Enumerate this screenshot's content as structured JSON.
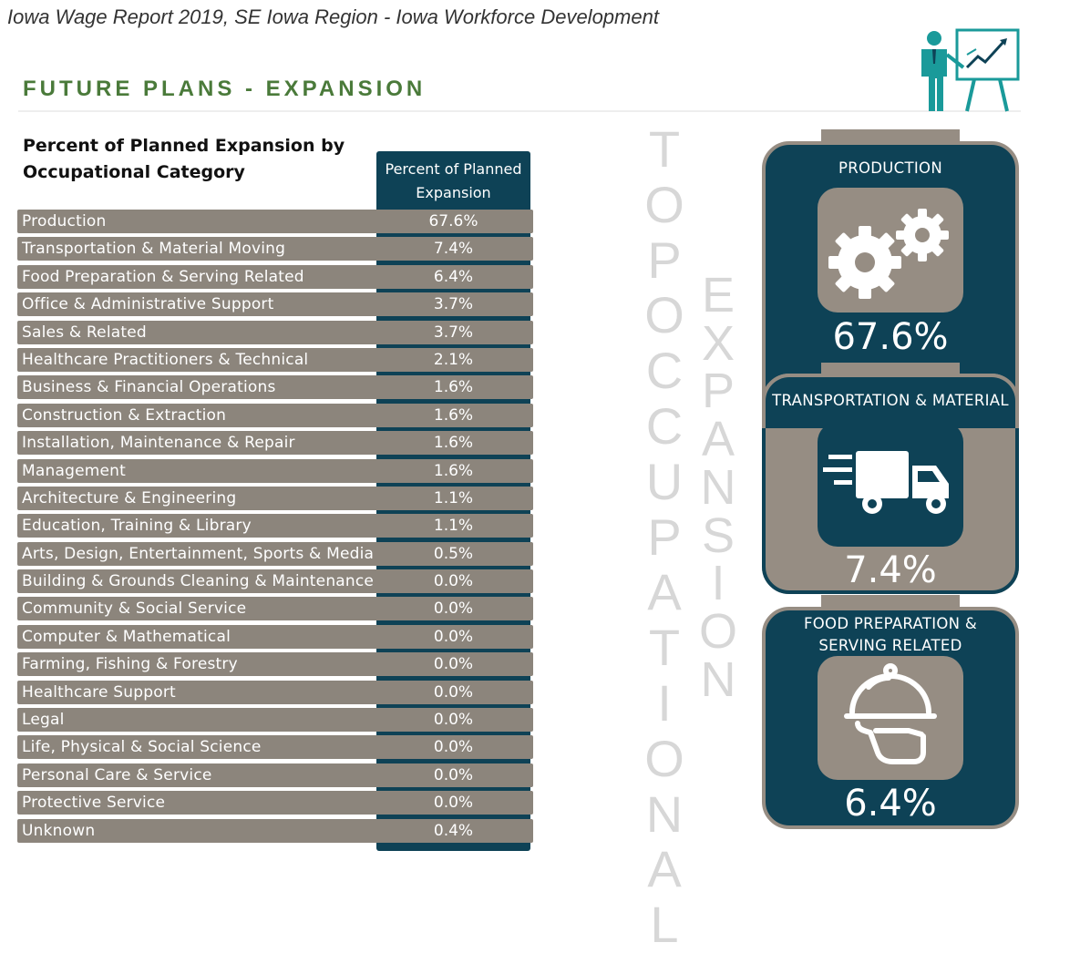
{
  "header": {
    "caption": "Iowa Wage Report 2019, SE Iowa Region - Iowa Workforce Development",
    "section_title": "FUTURE PLANS - EXPANSION",
    "presenter_icon": "presenter-chart-icon"
  },
  "table": {
    "title_line1": "Percent of Planned Expansion by",
    "title_line2": "Occupational Category",
    "column_header_line1": "Percent of Planned",
    "column_header_line2": "Expansion",
    "rows": [
      {
        "label": "Production",
        "value": "67.6%"
      },
      {
        "label": "Transportation & Material Moving",
        "value": "7.4%"
      },
      {
        "label": "Food Preparation & Serving Related",
        "value": "6.4%"
      },
      {
        "label": "Office & Administrative Support",
        "value": "3.7%"
      },
      {
        "label": "Sales & Related",
        "value": "3.7%"
      },
      {
        "label": "Healthcare Practitioners & Technical",
        "value": "2.1%"
      },
      {
        "label": "Business & Financial Operations",
        "value": "1.6%"
      },
      {
        "label": "Construction & Extraction",
        "value": "1.6%"
      },
      {
        "label": "Installation, Maintenance & Repair",
        "value": "1.6%"
      },
      {
        "label": "Management",
        "value": "1.6%"
      },
      {
        "label": "Architecture & Engineering",
        "value": "1.1%"
      },
      {
        "label": "Education, Training & Library",
        "value": "1.1%"
      },
      {
        "label": "Arts, Design, Entertainment, Sports & Media",
        "value": "0.5%"
      },
      {
        "label": "Building & Grounds Cleaning & Maintenance",
        "value": "0.0%"
      },
      {
        "label": "Community & Social Service",
        "value": "0.0%"
      },
      {
        "label": "Computer & Mathematical",
        "value": "0.0%"
      },
      {
        "label": "Farming, Fishing & Forestry",
        "value": "0.0%"
      },
      {
        "label": "Healthcare Support",
        "value": "0.0%"
      },
      {
        "label": "Legal",
        "value": "0.0%"
      },
      {
        "label": "Life, Physical & Social Science",
        "value": "0.0%"
      },
      {
        "label": "Personal Care & Service",
        "value": "0.0%"
      },
      {
        "label": "Protective Service",
        "value": "0.0%"
      },
      {
        "label": "Unknown",
        "value": "0.4%"
      }
    ]
  },
  "vertical_text": {
    "word1": "TOP OCCUPATIONAL",
    "word2": "EXPANSION"
  },
  "cards": [
    {
      "title_line1": "PRODUCTION",
      "title_line2": "",
      "icon": "gears-icon",
      "percent": "67.6%"
    },
    {
      "title_line1": "TRANSPORTATION  & MATERIAL",
      "title_line2": "",
      "icon": "delivery-truck-icon",
      "percent": "7.4%"
    },
    {
      "title_line1": "FOOD PREPARATION &",
      "title_line2": "SERVING RELATED",
      "icon": "serving-cloche-icon",
      "percent": "6.4%"
    }
  ],
  "colors": {
    "navy": "#0e4256",
    "taupe": "#8c857c",
    "title_green": "#4a7a3a",
    "vertical_text": "#d7d7d7"
  }
}
